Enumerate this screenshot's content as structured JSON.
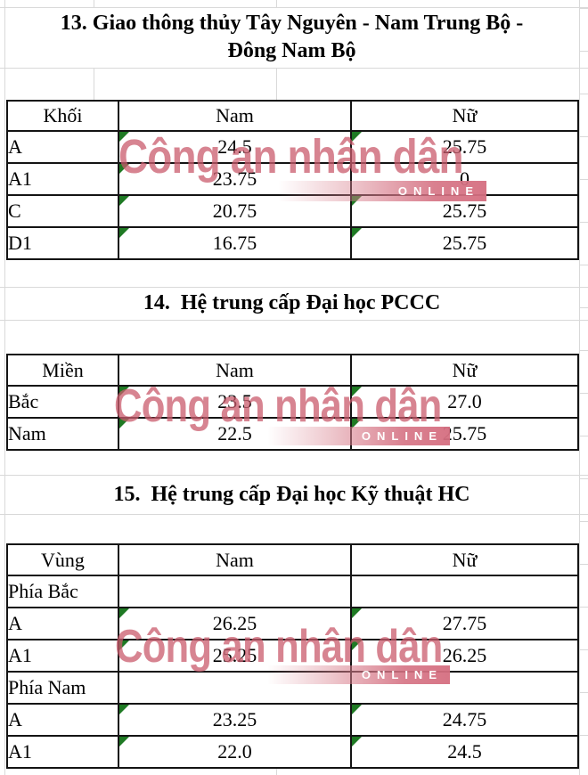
{
  "watermark": {
    "text": "Công an nhân dân",
    "online_label": "ONLINE",
    "text_color": "rgba(201,91,108,0.75)",
    "band_color": "#d98390"
  },
  "colors": {
    "table_border": "#141414",
    "grid_line": "#d9d9d9",
    "error_triangle": "#1f7a24",
    "text": "#000000",
    "background": "#ffffff"
  },
  "sections": [
    {
      "title_lines": [
        "13. Giao thông thủy Tây Nguyên - Nam Trung Bộ -",
        "Đông Nam Bộ"
      ],
      "table": {
        "columns": [
          "Khối",
          "Nam",
          "Nữ"
        ],
        "rows": [
          {
            "label": "A",
            "nam": "24.5",
            "nu": "25.75"
          },
          {
            "label": "A1",
            "nam": "23.75",
            "nu": "0"
          },
          {
            "label": "C",
            "nam": "20.75",
            "nu": "25.75"
          },
          {
            "label": "D1",
            "nam": "16.75",
            "nu": "25.75"
          }
        ]
      }
    },
    {
      "title_lines": [
        "14.  Hệ trung cấp Đại học PCCC"
      ],
      "table": {
        "columns": [
          "Miền",
          "Nam",
          "Nữ"
        ],
        "rows": [
          {
            "label": "Bắc",
            "nam": "23.5",
            "nu": "27.0"
          },
          {
            "label": "Nam",
            "nam": "22.5",
            "nu": "25.75"
          }
        ]
      }
    },
    {
      "title_lines": [
        "15.  Hệ trung cấp Đại học Kỹ thuật HC"
      ],
      "table": {
        "columns": [
          "Vùng",
          "Nam",
          "Nữ"
        ],
        "rows": [
          {
            "label": "Phía Bắc",
            "nam": "",
            "nu": ""
          },
          {
            "label": "A",
            "nam": "26.25",
            "nu": "27.75"
          },
          {
            "label": "A1",
            "nam": "25.25",
            "nu": "26.25"
          },
          {
            "label": "Phía Nam",
            "nam": "",
            "nu": ""
          },
          {
            "label": "A",
            "nam": "23.25",
            "nu": "24.75"
          },
          {
            "label": "A1",
            "nam": "22.0",
            "nu": "24.5"
          }
        ]
      }
    }
  ]
}
